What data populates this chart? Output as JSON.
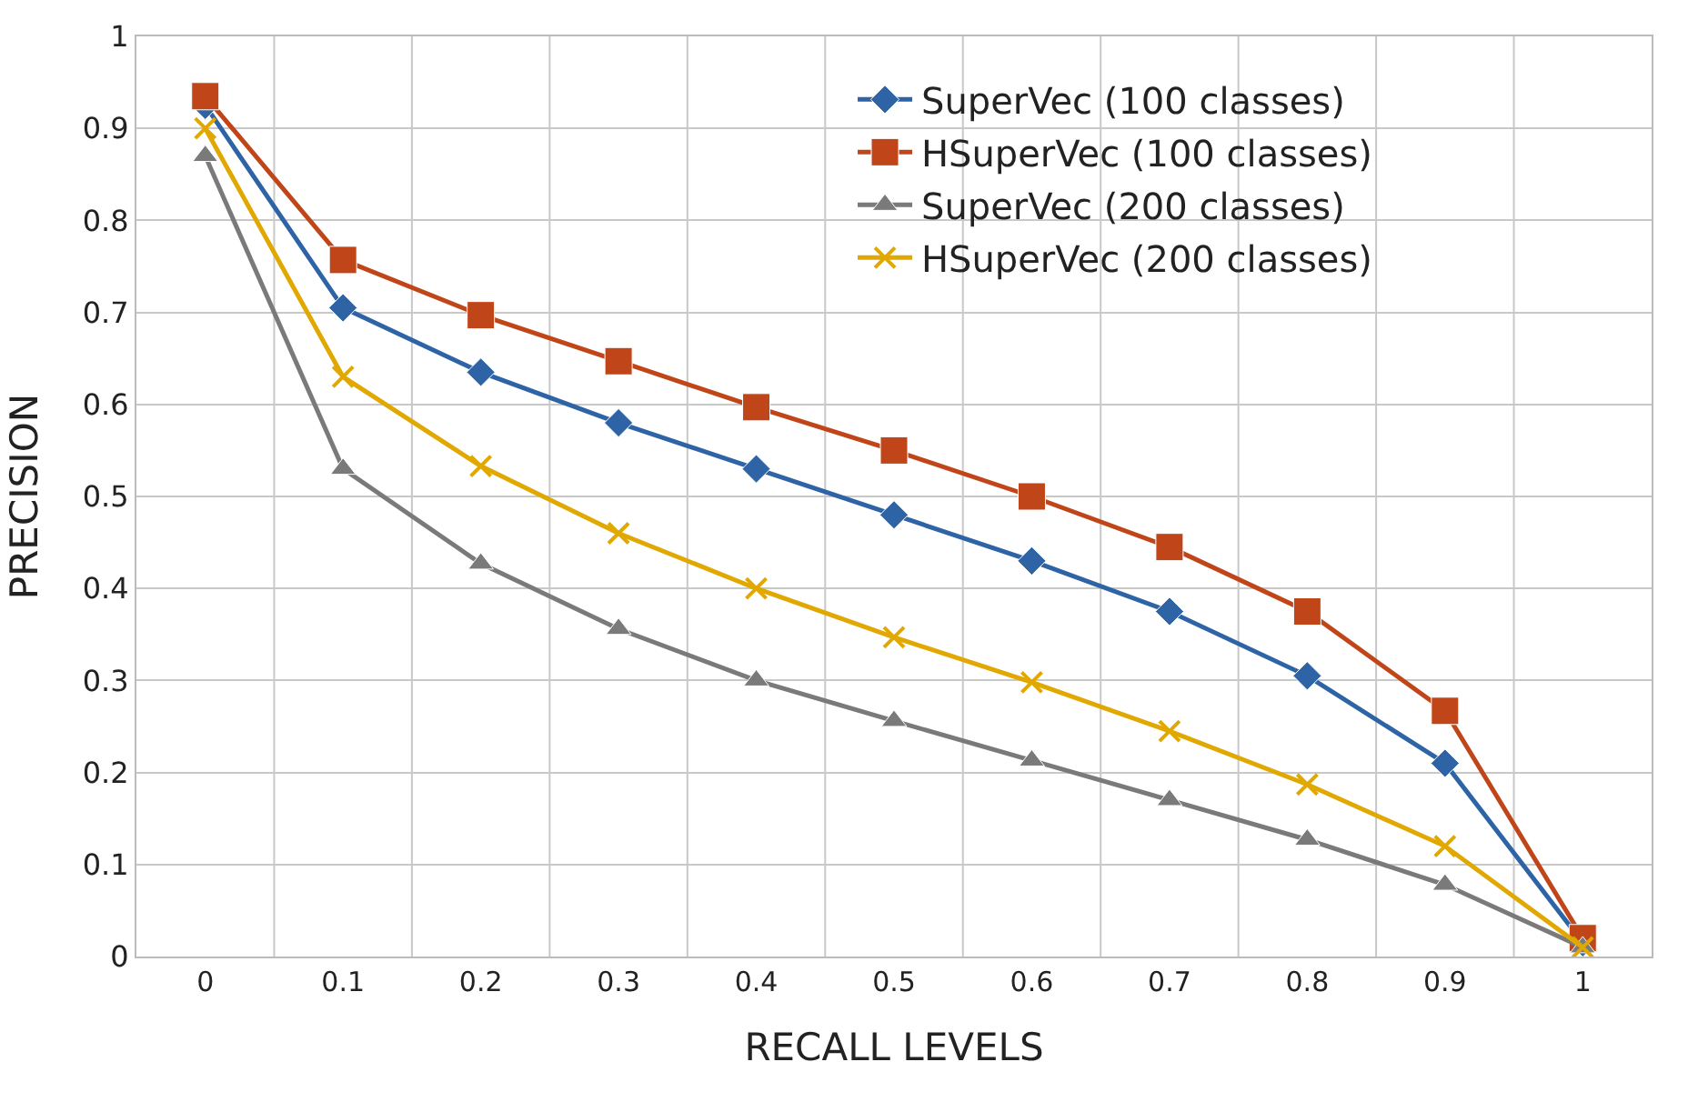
{
  "chart_data": {
    "type": "line",
    "xlabel": "RECALL LEVELS",
    "ylabel": "PRECISION",
    "categories": [
      "0",
      "0.1",
      "0.2",
      "0.3",
      "0.4",
      "0.5",
      "0.6",
      "0.7",
      "0.8",
      "0.9",
      "1"
    ],
    "series": [
      {
        "name": "SuperVec (100 classes)",
        "color": "#2e64a6",
        "marker": "diamond",
        "values": [
          0.925,
          0.705,
          0.635,
          0.58,
          0.53,
          0.48,
          0.43,
          0.375,
          0.305,
          0.21,
          0.015
        ]
      },
      {
        "name": "HSuperVec (100 classes)",
        "color": "#c0461a",
        "marker": "square",
        "values": [
          0.935,
          0.757,
          0.697,
          0.647,
          0.597,
          0.55,
          0.5,
          0.445,
          0.375,
          0.267,
          0.02
        ]
      },
      {
        "name": "SuperVec (200 classes)",
        "color": "#7a7a7a",
        "marker": "triangle",
        "values": [
          0.87,
          0.53,
          0.427,
          0.356,
          0.3,
          0.256,
          0.213,
          0.17,
          0.127,
          0.078,
          0.01
        ]
      },
      {
        "name": "HSuperVec (200 classes)",
        "color": "#e0a800",
        "marker": "cross",
        "values": [
          0.9,
          0.63,
          0.533,
          0.46,
          0.4,
          0.347,
          0.298,
          0.245,
          0.187,
          0.12,
          0.01
        ]
      }
    ],
    "ylim": [
      0,
      1
    ],
    "yticks": [
      0,
      0.1,
      0.2,
      0.3,
      0.4,
      0.5,
      0.6,
      0.7,
      0.8,
      0.9,
      1
    ],
    "grid": true,
    "legend": "top right",
    "line_style": "solid"
  }
}
